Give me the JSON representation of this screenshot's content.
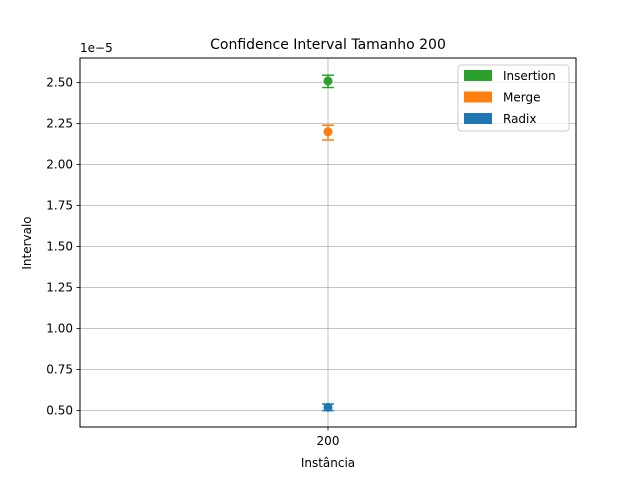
{
  "chart_data": {
    "type": "scatter",
    "title": "Confidence Interval Tamanho 200",
    "xlabel": "Instância",
    "ylabel": "Intervalo",
    "offset_label": "1e−5",
    "categories": [
      "200"
    ],
    "ylim": [
      0.4,
      2.65
    ],
    "yticks": [
      0.5,
      0.75,
      1.0,
      1.25,
      1.5,
      1.75,
      2.0,
      2.25,
      2.5
    ],
    "ytick_labels": [
      "0.50",
      "0.75",
      "1.00",
      "1.25",
      "1.50",
      "1.75",
      "2.00",
      "2.25",
      "2.50"
    ],
    "grid": true,
    "legend_position": "top-right",
    "series": [
      {
        "name": "Insertion",
        "color": "#2ca02c",
        "values": [
          2.51
        ],
        "lower": [
          2.47
        ],
        "upper": [
          2.545
        ]
      },
      {
        "name": "Merge",
        "color": "#ff7f0e",
        "values": [
          2.2
        ],
        "lower": [
          2.15
        ],
        "upper": [
          2.24
        ]
      },
      {
        "name": "Radix",
        "color": "#1f77b4",
        "values": [
          0.52
        ],
        "lower": [
          0.5
        ],
        "upper": [
          0.54
        ]
      }
    ]
  }
}
